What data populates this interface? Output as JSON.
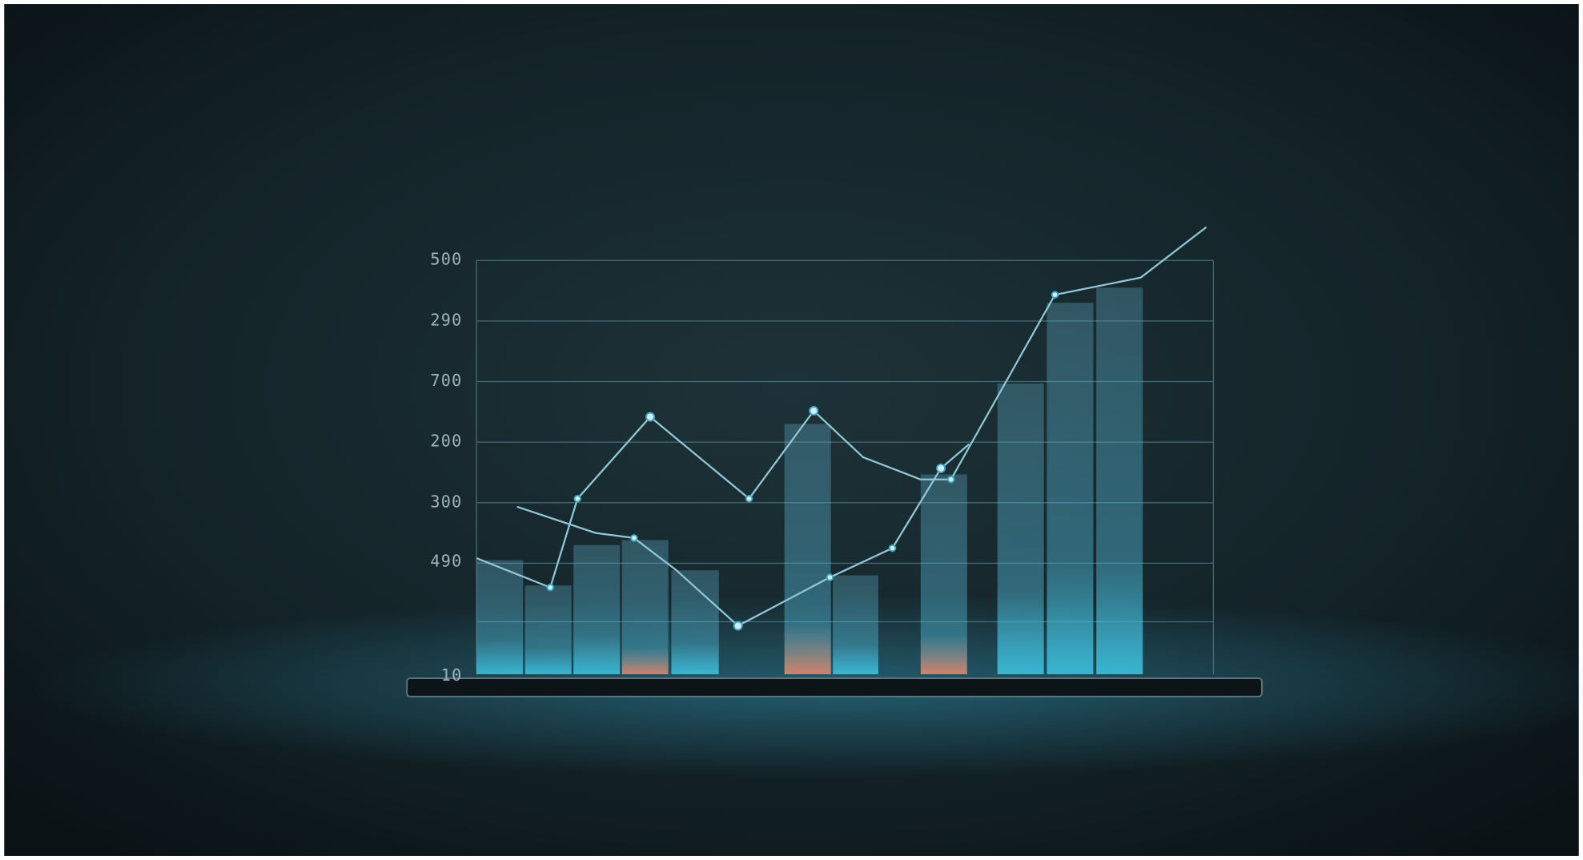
{
  "axis": {
    "labels": [
      "500",
      "290",
      "700",
      "200",
      "300",
      "490",
      "10"
    ]
  }
}
